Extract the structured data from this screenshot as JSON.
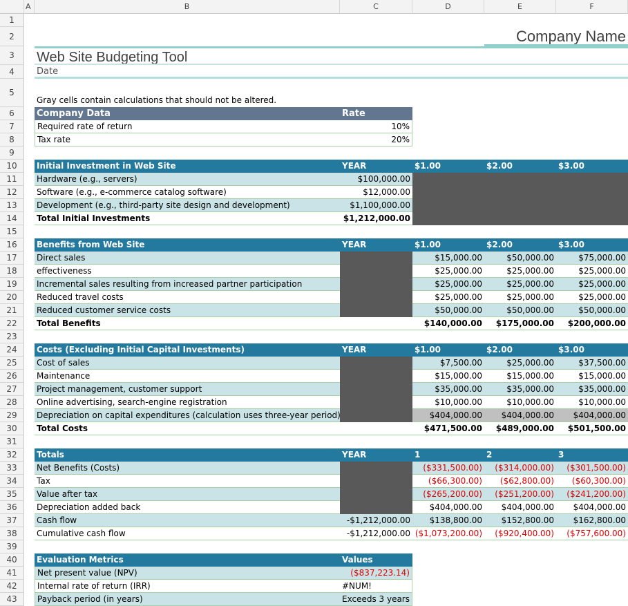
{
  "columns": [
    "A",
    "B",
    "C",
    "D",
    "E",
    "F"
  ],
  "company_name": "Company Name",
  "title": "Web Site Budgeting Tool",
  "date_label": "Date",
  "note": "Gray cells contain calculations that should not be altered.",
  "company_data": {
    "header": [
      "Company Data",
      "Rate"
    ],
    "rows": [
      [
        "Required rate of return",
        "10%"
      ],
      [
        "Tax rate",
        "20%"
      ]
    ]
  },
  "initial_investment": {
    "header": [
      "Initial Investment in Web Site",
      "YEAR",
      "$1.00",
      "$2.00",
      "$3.00"
    ],
    "rows": [
      [
        "Hardware (e.g., servers)",
        "$100,000.00"
      ],
      [
        "Software (e.g., e-commerce catalog software)",
        "$12,000.00"
      ],
      [
        "Development (e.g., third-party site design and development)",
        "$1,100,000.00"
      ]
    ],
    "total": [
      "Total Initial Investments",
      "$1,212,000.00"
    ]
  },
  "benefits": {
    "header": [
      "Benefits from Web Site",
      "YEAR",
      "$1.00",
      "$2.00",
      "$3.00"
    ],
    "rows": [
      [
        "Direct sales",
        "$15,000.00",
        "$50,000.00",
        "$75,000.00"
      ],
      [
        "effectiveness",
        "$25,000.00",
        "$25,000.00",
        "$25,000.00"
      ],
      [
        "Incremental sales resulting from increased partner participation",
        "$25,000.00",
        "$25,000.00",
        "$25,000.00"
      ],
      [
        "Reduced travel costs",
        "$25,000.00",
        "$25,000.00",
        "$25,000.00"
      ],
      [
        "Reduced customer service costs",
        "$50,000.00",
        "$50,000.00",
        "$50,000.00"
      ]
    ],
    "total": [
      "Total Benefits",
      "$140,000.00",
      "$175,000.00",
      "$200,000.00"
    ]
  },
  "costs": {
    "header": [
      "Costs (Excluding Initial Capital Investments)",
      "YEAR",
      "$1.00",
      "$2.00",
      "$3.00"
    ],
    "rows": [
      [
        "Cost of sales",
        "$7,500.00",
        "$25,000.00",
        "$37,500.00"
      ],
      [
        "Maintenance",
        "$15,000.00",
        "$15,000.00",
        "$15,000.00"
      ],
      [
        "Project management, customer support",
        "$35,000.00",
        "$35,000.00",
        "$35,000.00"
      ],
      [
        "Online advertising, search-engine registration",
        "$10,000.00",
        "$10,000.00",
        "$10,000.00"
      ],
      [
        "Depreciation on capital expenditures (calculation uses three-year period)",
        "$404,000.00",
        "$404,000.00",
        "$404,000.00"
      ]
    ],
    "total": [
      "Total Costs",
      "$471,500.00",
      "$489,000.00",
      "$501,500.00"
    ]
  },
  "totals": {
    "header": [
      "Totals",
      "YEAR",
      "1",
      "2",
      "3"
    ],
    "rows": [
      [
        "Net Benefits (Costs)",
        "",
        "($331,500.00)",
        "($314,000.00)",
        "($301,500.00)"
      ],
      [
        "Tax",
        "",
        "($66,300.00)",
        "($62,800.00)",
        "($60,300.00)"
      ],
      [
        "Value after tax",
        "",
        "($265,200.00)",
        "($251,200.00)",
        "($241,200.00)"
      ],
      [
        "Depreciation added back",
        "",
        "$404,000.00",
        "$404,000.00",
        "$404,000.00"
      ],
      [
        "Cash flow",
        "-$1,212,000.00",
        "$138,800.00",
        "$152,800.00",
        "$162,800.00"
      ],
      [
        "Cumulative cash flow",
        "-$1,212,000.00",
        "($1,073,200.00)",
        "($920,400.00)",
        "($757,600.00)"
      ]
    ]
  },
  "metrics": {
    "header": [
      "Evaluation Metrics",
      "Values"
    ],
    "rows": [
      [
        "Net present value (NPV)",
        "($837,223.14)"
      ],
      [
        "Internal rate of return (IRR)",
        "#NUM!"
      ],
      [
        "Payback period (in years)",
        "Exceeds 3 years"
      ]
    ]
  },
  "colors": {
    "header": "#24799e",
    "company_header": "#637690",
    "band": "#c9e3e6",
    "calc_gray": "#595959",
    "negative": "#e00000",
    "accent_line": "#8fd0cc"
  }
}
